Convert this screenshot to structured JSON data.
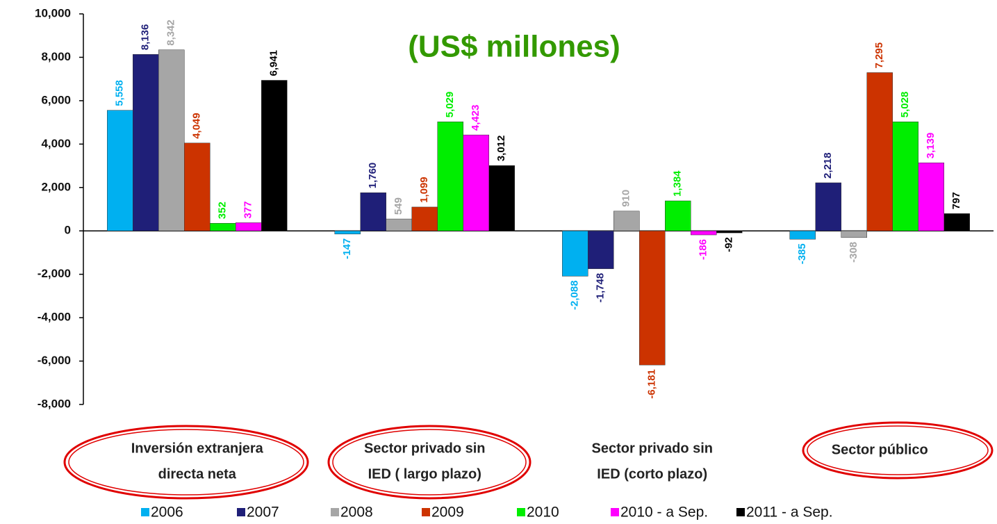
{
  "chart_data": {
    "type": "bar",
    "title": "(US$ millones)",
    "categories": [
      [
        "Inversión extranjera",
        "directa neta"
      ],
      [
        "Sector privado sin",
        "IED ( largo plazo)"
      ],
      [
        "Sector privado sin",
        "IED  (corto  plazo)"
      ],
      [
        "Sector público"
      ]
    ],
    "series": [
      {
        "name": "2006",
        "color": "#00b0f0",
        "values": [
          5558,
          -147,
          -2088,
          -385
        ],
        "value_labels": [
          "5,558",
          "-147",
          "-2,088",
          "-385"
        ]
      },
      {
        "name": "2007",
        "color": "#1f1f78",
        "values": [
          8136,
          1760,
          -1748,
          2218
        ],
        "value_labels": [
          "8,136",
          "1,760",
          "-1,748",
          "2,218"
        ]
      },
      {
        "name": "2008",
        "color": "#a6a6a6",
        "values": [
          8342,
          549,
          910,
          -308
        ],
        "value_labels": [
          "8,342",
          "549",
          "910",
          "-308"
        ]
      },
      {
        "name": "2009",
        "color": "#cc3300",
        "values": [
          4049,
          1099,
          -6181,
          7295
        ],
        "value_labels": [
          "4,049",
          "1,099",
          "-6,181",
          "7,295"
        ]
      },
      {
        "name": "2010",
        "color": "#00ee00",
        "values": [
          352,
          5029,
          1384,
          5028
        ],
        "value_labels": [
          "352",
          "5,029",
          "1,384",
          "5,028"
        ]
      },
      {
        "name": "2010 - a Sep.",
        "color": "#ff00ff",
        "values": [
          377,
          4423,
          -186,
          3139
        ],
        "value_labels": [
          "377",
          "4,423",
          "-186",
          "3,139"
        ]
      },
      {
        "name": "2011 - a Sep.",
        "color": "#000000",
        "values": [
          6941,
          3012,
          -92,
          797
        ],
        "value_labels": [
          "6,941",
          "3,012",
          "-92",
          "797"
        ]
      }
    ],
    "ylim": [
      -8000,
      10000
    ],
    "yticks": [
      {
        "value": -8000,
        "label": "-8,000"
      },
      {
        "value": -6000,
        "label": "-6,000"
      },
      {
        "value": -4000,
        "label": "-4,000"
      },
      {
        "value": -2000,
        "label": "-2,000"
      },
      0,
      {
        "value": 2000,
        "label": "2,000"
      },
      {
        "value": 4000,
        "label": "4,000"
      },
      {
        "value": 6000,
        "label": "6,000"
      },
      {
        "value": 8000,
        "label": "8,000"
      },
      {
        "value": 10000,
        "label": "10,000"
      }
    ],
    "grid": false,
    "legend": "bottom"
  }
}
